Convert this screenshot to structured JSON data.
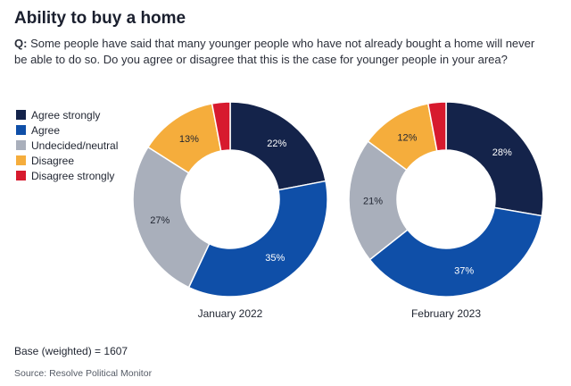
{
  "title": "Ability to buy a home",
  "question": {
    "prefix": "Q:",
    "text": "Some people have said that many younger people who have not already bought a home will never be able to do so. Do you agree or disagree that this is the case for younger people in your area?"
  },
  "legend": [
    {
      "label": "Agree strongly",
      "color": "#14234a"
    },
    {
      "label": "Agree",
      "color": "#0f4fa8"
    },
    {
      "label": "Undecided/neutral",
      "color": "#a9afbb"
    },
    {
      "label": "Disagree",
      "color": "#f5ad3c"
    },
    {
      "label": "Disagree strongly",
      "color": "#d71a2e"
    }
  ],
  "chart_data": [
    {
      "type": "pie",
      "donut": true,
      "caption": "January 2022",
      "categories": [
        "Agree strongly",
        "Agree",
        "Undecided/neutral",
        "Disagree",
        "Disagree strongly"
      ],
      "values": [
        22,
        35,
        27,
        13,
        3
      ],
      "labels": [
        "22%",
        "35%",
        "27%",
        "13%",
        ""
      ]
    },
    {
      "type": "pie",
      "donut": true,
      "caption": "February 2023",
      "categories": [
        "Agree strongly",
        "Agree",
        "Undecided/neutral",
        "Disagree",
        "Disagree strongly"
      ],
      "values": [
        28,
        37,
        21,
        12,
        3
      ],
      "labels": [
        "28%",
        "37%",
        "21%",
        "12%",
        ""
      ]
    }
  ],
  "base": "Base (weighted) = 1607",
  "source": "Source: Resolve Political Monitor"
}
